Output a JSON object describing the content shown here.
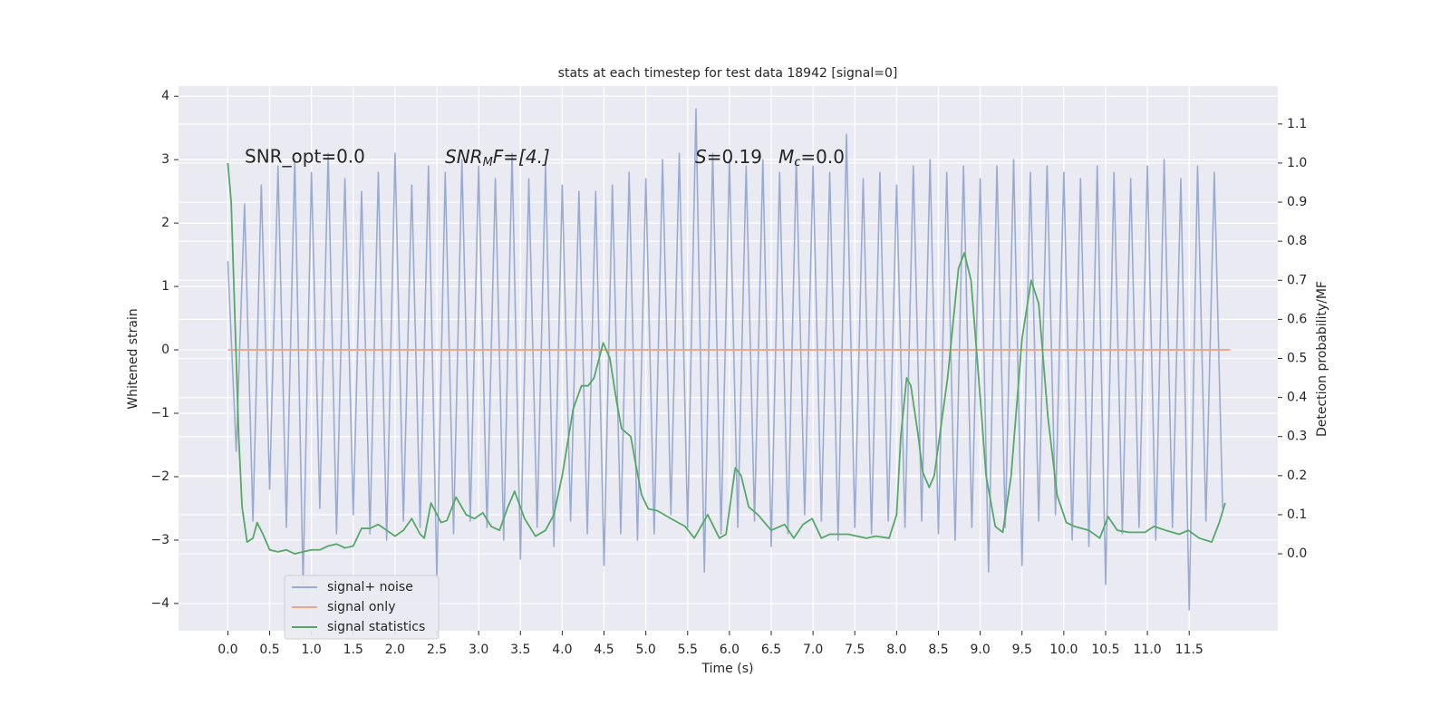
{
  "chart_data": {
    "type": "line",
    "title": "stats at each timestep for test data 18942 [signal=0]",
    "xlabel": "Time (s)",
    "ylabel": "Whitened strain",
    "y2label": "Detection probability/MF",
    "annotations": [
      "SNR_opt=0.0",
      [
        "SNR",
        "M",
        "F=[4.]"
      ],
      [
        "S",
        "=0.19"
      ],
      [
        "M",
        "c",
        "=0.0"
      ]
    ],
    "xlim": [
      -0.59,
      12.56
    ],
    "ylim": [
      -4.43,
      4.16
    ],
    "y2lim": [
      -0.197,
      1.197
    ],
    "xticks": [
      {
        "value": 0,
        "label": "0.0"
      },
      {
        "value": 0.5,
        "label": "0.5"
      },
      {
        "value": 1,
        "label": "1.0"
      },
      {
        "value": 1.5,
        "label": "1.5"
      },
      {
        "value": 2,
        "label": "2.0"
      },
      {
        "value": 2.5,
        "label": "2.5"
      },
      {
        "value": 3,
        "label": "3.0"
      },
      {
        "value": 3.5,
        "label": "3.5"
      },
      {
        "value": 4,
        "label": "4.0"
      },
      {
        "value": 4.5,
        "label": "4.5"
      },
      {
        "value": 5,
        "label": "5.0"
      },
      {
        "value": 5.5,
        "label": "5.5"
      },
      {
        "value": 6,
        "label": "6.0"
      },
      {
        "value": 6.5,
        "label": "6.5"
      },
      {
        "value": 7,
        "label": "7.0"
      },
      {
        "value": 7.5,
        "label": "7.5"
      },
      {
        "value": 8,
        "label": "8.0"
      },
      {
        "value": 8.5,
        "label": "8.5"
      },
      {
        "value": 9,
        "label": "9.0"
      },
      {
        "value": 9.5,
        "label": "9.5"
      },
      {
        "value": 10,
        "label": "10.0"
      },
      {
        "value": 10.5,
        "label": "10.5"
      },
      {
        "value": 11,
        "label": "11.0"
      },
      {
        "value": 11.5,
        "label": "11.5"
      }
    ],
    "yticks": [
      {
        "value": -4,
        "label": "−4"
      },
      {
        "value": -3,
        "label": "−3"
      },
      {
        "value": -2,
        "label": "−2"
      },
      {
        "value": -1,
        "label": "−1"
      },
      0,
      1,
      2,
      3,
      4
    ],
    "y2ticks": [
      {
        "value": 0,
        "label": "0.0"
      },
      {
        "value": 0.1,
        "label": "0.1"
      },
      {
        "value": 0.2,
        "label": "0.2"
      },
      {
        "value": 0.3,
        "label": "0.3"
      },
      {
        "value": 0.4,
        "label": "0.4"
      },
      {
        "value": 0.5,
        "label": "0.5"
      },
      {
        "value": 0.6,
        "label": "0.6"
      },
      {
        "value": 0.7,
        "label": "0.7"
      },
      {
        "value": 0.8,
        "label": "0.8"
      },
      {
        "value": 0.9,
        "label": "0.9"
      },
      {
        "value": 1,
        "label": "1.0"
      },
      {
        "value": 1.1,
        "label": "1.1"
      }
    ],
    "grid": true,
    "legend": "lower left",
    "series": [
      {
        "name": "signal+ noise",
        "color": "#9aabd2",
        "x": [
          0,
          0.1,
          0.2,
          0.3,
          0.4,
          0.5,
          0.6,
          0.7,
          0.8,
          0.9,
          1,
          1.1,
          1.2,
          1.3,
          1.4,
          1.5,
          1.6,
          1.7,
          1.8,
          1.9,
          2,
          2.1,
          2.2,
          2.3,
          2.4,
          2.5,
          2.6,
          2.7,
          2.8,
          2.9,
          3,
          3.1,
          3.2,
          3.3,
          3.4,
          3.5,
          3.6,
          3.7,
          3.8,
          3.9,
          4,
          4.1,
          4.2,
          4.3,
          4.4,
          4.5,
          4.6,
          4.7,
          4.8,
          4.9,
          5,
          5.1,
          5.2,
          5.3,
          5.4,
          5.5,
          5.6,
          5.7,
          5.8,
          5.9,
          6,
          6.1,
          6.2,
          6.3,
          6.4,
          6.5,
          6.6,
          6.7,
          6.8,
          6.9,
          7,
          7.1,
          7.2,
          7.3,
          7.4,
          7.5,
          7.6,
          7.7,
          7.8,
          7.9,
          8,
          8.1,
          8.2,
          8.3,
          8.4,
          8.5,
          8.6,
          8.7,
          8.8,
          8.9,
          9,
          9.1,
          9.2,
          9.3,
          9.4,
          9.5,
          9.6,
          9.7,
          9.8,
          9.9,
          10,
          10.1,
          10.2,
          10.3,
          10.4,
          10.5,
          10.6,
          10.7,
          10.8,
          10.9,
          11,
          11.1,
          11.2,
          11.3,
          11.4,
          11.5,
          11.6,
          11.7,
          11.8,
          11.9
        ],
        "values": [
          1.4,
          -1.6,
          2.3,
          -2.7,
          2.6,
          -2.2,
          2.9,
          -2.8,
          3.0,
          -3.7,
          2.8,
          -2.5,
          3.1,
          -2.9,
          2.7,
          -2.6,
          2.5,
          -2.9,
          2.8,
          -3.0,
          3.1,
          -2.7,
          2.6,
          -2.8,
          2.9,
          -3.6,
          2.8,
          -2.9,
          3.0,
          -2.7,
          2.9,
          -2.8,
          2.7,
          -3.0,
          3.1,
          -3.3,
          2.7,
          -2.8,
          2.9,
          -3.1,
          2.6,
          -2.7,
          2.5,
          -2.9,
          2.5,
          -3.4,
          2.6,
          -2.9,
          2.8,
          -3.0,
          2.7,
          -2.9,
          3.0,
          -2.6,
          3.1,
          -2.8,
          3.8,
          -3.5,
          3.1,
          -2.9,
          3.0,
          -2.8,
          2.9,
          -2.7,
          3.0,
          -3.1,
          2.8,
          -2.9,
          3.0,
          -2.6,
          2.9,
          -2.7,
          2.8,
          -3.0,
          3.4,
          -2.8,
          2.7,
          -2.9,
          2.8,
          -2.7,
          2.6,
          -2.8,
          2.9,
          -2.7,
          3.0,
          -2.9,
          2.8,
          -3.0,
          2.9,
          -2.8,
          2.7,
          -3.5,
          2.9,
          -2.8,
          3.0,
          -3.4,
          2.8,
          -2.7,
          2.9,
          -2.6,
          2.8,
          -3.0,
          2.7,
          -3.1,
          2.9,
          -3.7,
          2.8,
          -2.9,
          2.7,
          -2.8,
          2.9,
          -3.0,
          3.0,
          -2.8,
          2.7,
          -4.1,
          2.9,
          -2.7,
          2.8,
          -2.5
        ]
      },
      {
        "name": "signal only",
        "color": "#e8a98a",
        "x": [
          0,
          11.99
        ],
        "values": [
          0,
          0
        ]
      },
      {
        "name": "signal statistics",
        "color": "#55a868",
        "axis": "y2",
        "x": [
          0,
          0.04,
          0.1,
          0.13,
          0.17,
          0.23,
          0.3,
          0.35,
          0.42,
          0.5,
          0.6,
          0.7,
          0.8,
          0.9,
          1.0,
          1.1,
          1.2,
          1.3,
          1.4,
          1.5,
          1.6,
          1.7,
          1.8,
          1.9,
          2.0,
          2.1,
          2.2,
          2.3,
          2.35,
          2.43,
          2.55,
          2.62,
          2.73,
          2.85,
          2.95,
          3.05,
          3.15,
          3.25,
          3.35,
          3.43,
          3.55,
          3.68,
          3.8,
          3.9,
          4.0,
          4.13,
          4.23,
          4.31,
          4.38,
          4.49,
          4.57,
          4.65,
          4.71,
          4.82,
          4.87,
          4.95,
          5.03,
          5.14,
          5.3,
          5.47,
          5.58,
          5.74,
          5.88,
          5.96,
          6.07,
          6.14,
          6.23,
          6.34,
          6.5,
          6.66,
          6.77,
          6.88,
          6.99,
          7.1,
          7.2,
          7.42,
          7.64,
          7.75,
          7.91,
          8.0,
          8.05,
          8.12,
          8.17,
          8.26,
          8.31,
          8.39,
          8.45,
          8.61,
          8.74,
          8.81,
          8.89,
          9.0,
          9.07,
          9.18,
          9.27,
          9.37,
          9.5,
          9.61,
          9.7,
          9.81,
          9.92,
          10.03,
          10.13,
          10.3,
          10.43,
          10.53,
          10.64,
          10.78,
          10.97,
          11.08,
          11.22,
          11.38,
          11.49,
          11.62,
          11.77,
          11.86,
          11.93
        ],
        "values": [
          1.0,
          0.9,
          0.5,
          0.3,
          0.12,
          0.03,
          0.04,
          0.08,
          0.05,
          0.01,
          0.005,
          0.01,
          0.0,
          0.005,
          0.01,
          0.01,
          0.02,
          0.025,
          0.015,
          0.02,
          0.065,
          0.065,
          0.075,
          0.06,
          0.045,
          0.06,
          0.09,
          0.05,
          0.04,
          0.13,
          0.08,
          0.085,
          0.145,
          0.1,
          0.09,
          0.105,
          0.07,
          0.06,
          0.12,
          0.16,
          0.09,
          0.045,
          0.06,
          0.1,
          0.2,
          0.37,
          0.43,
          0.43,
          0.45,
          0.54,
          0.5,
          0.39,
          0.32,
          0.3,
          0.24,
          0.15,
          0.115,
          0.11,
          0.09,
          0.07,
          0.04,
          0.1,
          0.04,
          0.05,
          0.22,
          0.2,
          0.12,
          0.1,
          0.06,
          0.075,
          0.04,
          0.075,
          0.09,
          0.04,
          0.05,
          0.05,
          0.04,
          0.045,
          0.04,
          0.1,
          0.3,
          0.45,
          0.43,
          0.3,
          0.21,
          0.17,
          0.2,
          0.45,
          0.73,
          0.77,
          0.7,
          0.4,
          0.2,
          0.07,
          0.055,
          0.2,
          0.55,
          0.7,
          0.64,
          0.35,
          0.15,
          0.08,
          0.07,
          0.06,
          0.04,
          0.095,
          0.06,
          0.055,
          0.055,
          0.07,
          0.06,
          0.05,
          0.06,
          0.04,
          0.03,
          0.08,
          0.13
        ]
      }
    ]
  }
}
